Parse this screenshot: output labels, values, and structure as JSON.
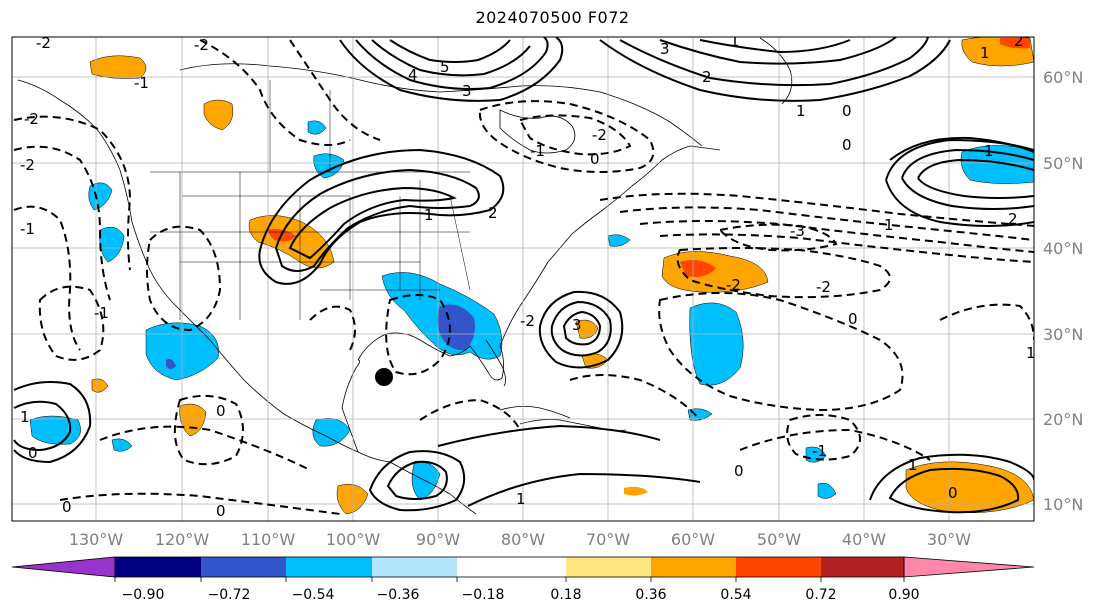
{
  "title": "2024070500 F072",
  "lon_labels": [
    "130°W",
    "120°W",
    "110°W",
    "100°W",
    "90°W",
    "80°W",
    "70°W",
    "60°W",
    "50°W",
    "40°W",
    "30°W"
  ],
  "lat_labels": [
    "60°N",
    "50°N",
    "40°N",
    "30°N",
    "20°N",
    "10°N"
  ],
  "colorbar": {
    "ticks": [
      "−0.90",
      "−0.72",
      "−0.54",
      "−0.36",
      "−0.18",
      "0.18",
      "0.36",
      "0.54",
      "0.72",
      "0.90"
    ],
    "colors": [
      "#9933cc",
      "#000080",
      "#3355cc",
      "#00bfff",
      "#b3e5fc",
      "#ffffff",
      "#ffe680",
      "#ffa500",
      "#ff4500",
      "#b22222",
      "#ff88aa"
    ]
  },
  "contour_labels": {
    "positive": [
      "5",
      "4",
      "3",
      "2",
      "1",
      "1",
      "2",
      "3",
      "1",
      "1",
      "2",
      "1",
      "1",
      "2",
      "3",
      "1",
      "1",
      "1",
      "1"
    ],
    "zero": [
      "0",
      "0",
      "0",
      "0",
      "0",
      "0",
      "0",
      "0",
      "0",
      "0"
    ],
    "negative": [
      "-2",
      "-1",
      "-2",
      "-2",
      "-1",
      "-2",
      "-3",
      "-2",
      "-2",
      "-1",
      "-2",
      "-1",
      "-1",
      "-2"
    ]
  },
  "marker": {
    "name": "storm-center",
    "color": "#000000"
  }
}
